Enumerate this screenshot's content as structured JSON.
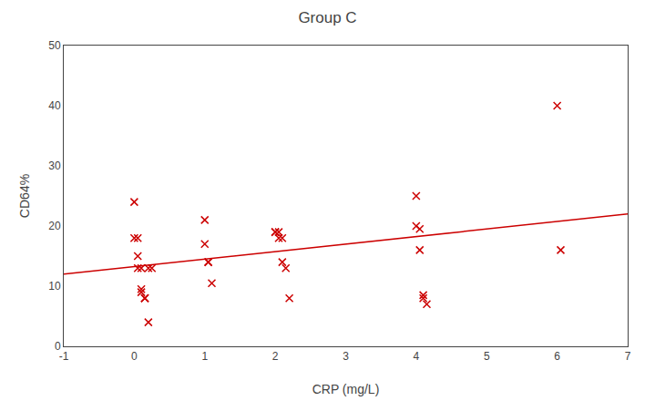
{
  "chart_data": {
    "type": "scatter",
    "title": "Group C",
    "xlabel": "CRP (mg/L)",
    "ylabel": "CD64%",
    "xlim": [
      -1,
      7
    ],
    "ylim": [
      0,
      50
    ],
    "xticks": [
      -1,
      0,
      1,
      2,
      3,
      4,
      5,
      6,
      7
    ],
    "yticks": [
      0,
      10,
      20,
      30,
      40,
      50
    ],
    "grid": false,
    "series": [
      {
        "type": "scatter",
        "color": "#cc0000",
        "marker": "x",
        "x": [
          0.0,
          0.0,
          0.05,
          0.05,
          0.05,
          0.1,
          0.1,
          0.1,
          0.15,
          0.15,
          0.15,
          0.2,
          0.2,
          0.25,
          1.0,
          1.0,
          1.05,
          1.05,
          1.1,
          2.0,
          2.0,
          2.05,
          2.05,
          2.1,
          2.1,
          2.15,
          2.2,
          4.0,
          4.0,
          4.05,
          4.05,
          4.1,
          4.1,
          4.15,
          6.0,
          6.05
        ],
        "values": [
          24,
          18,
          18,
          15,
          13,
          13,
          9.5,
          9,
          8,
          8,
          8,
          4,
          13,
          13,
          21,
          17,
          14,
          14,
          10.5,
          19,
          19,
          19,
          18,
          18,
          14,
          13,
          8,
          25,
          20,
          19.5,
          16,
          8.5,
          8,
          7,
          40,
          16
        ]
      },
      {
        "type": "line",
        "color": "#cc0000",
        "line_style": "solid",
        "x": [
          -1,
          7
        ],
        "values": [
          12.0,
          22.0
        ]
      }
    ]
  }
}
